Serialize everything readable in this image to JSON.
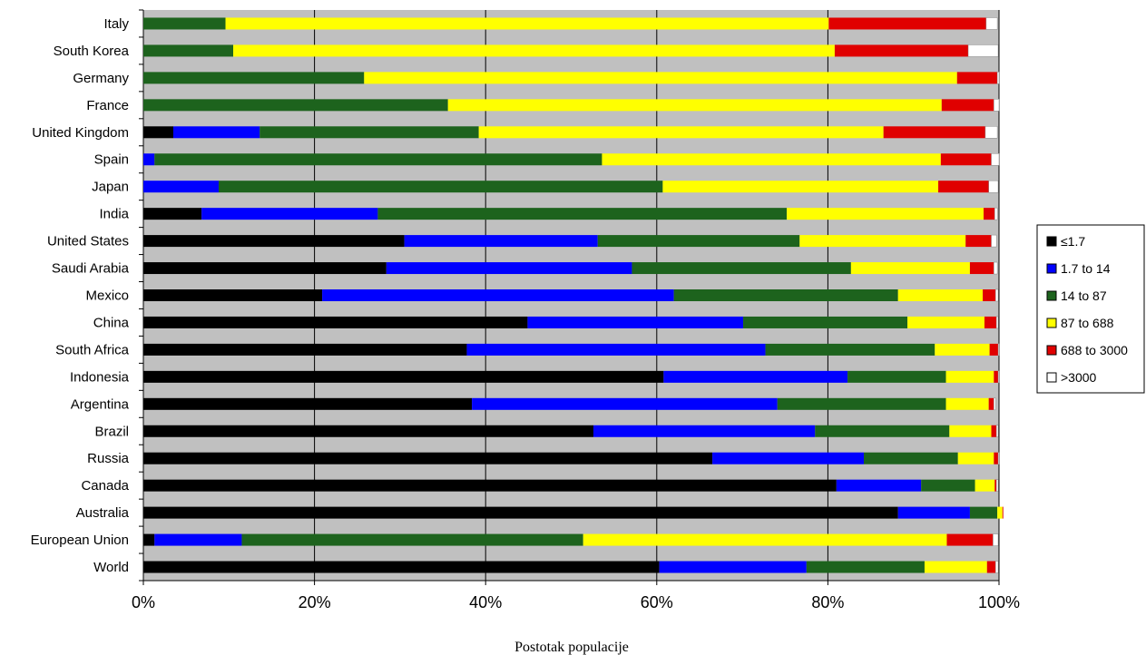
{
  "chart_data": {
    "type": "bar",
    "orientation": "horizontal",
    "stacked": true,
    "percent": true,
    "title": "",
    "xlabel": "Postotak populacije",
    "ylabel": "",
    "xlim": [
      0,
      100
    ],
    "x_ticks": [
      "0%",
      "20%",
      "40%",
      "60%",
      "80%",
      "100%"
    ],
    "grid": true,
    "legend_position": "right",
    "categories": [
      "Italy",
      "South Korea",
      "Germany",
      "France",
      "United Kingdom",
      "Spain",
      "Japan",
      "India",
      "United States",
      "Saudi Arabia",
      "Mexico",
      "China",
      "South Africa",
      "Indonesia",
      "Argentina",
      "Brazil",
      "Russia",
      "Canada",
      "Australia",
      "European Union",
      "World"
    ],
    "series": [
      {
        "name": "≤1.7",
        "color": "#000000",
        "values": [
          0,
          0,
          0,
          0,
          3.5,
          0,
          0,
          6.8,
          30.5,
          28.4,
          20.9,
          44.9,
          37.8,
          60.8,
          38.4,
          52.6,
          66.5,
          81.0,
          88.2,
          1.3,
          60.3
        ]
      },
      {
        "name": "1.7 to 14",
        "color": "#0000ff",
        "values": [
          0,
          0,
          0,
          0,
          10.1,
          1.3,
          8.8,
          20.6,
          22.6,
          28.7,
          41.1,
          25.2,
          34.9,
          21.5,
          35.7,
          25.9,
          17.7,
          9.9,
          8.4,
          10.2,
          17.2
        ]
      },
      {
        "name": "14 to 87",
        "color": "#1d631d",
        "values": [
          9.6,
          10.5,
          25.8,
          35.6,
          25.6,
          52.3,
          51.9,
          47.8,
          23.6,
          25.6,
          26.2,
          19.2,
          19.8,
          11.5,
          19.7,
          15.7,
          11.0,
          6.3,
          3.2,
          39.9,
          13.8
        ]
      },
      {
        "name": "87 to 688",
        "color": "#ffff00",
        "values": [
          70.5,
          70.3,
          69.3,
          57.7,
          47.3,
          39.6,
          32.2,
          23.0,
          19.4,
          13.9,
          9.9,
          9.0,
          6.4,
          5.6,
          5.0,
          4.9,
          4.2,
          2.3,
          0.6,
          42.5,
          7.3
        ]
      },
      {
        "name": "688 to 3000",
        "color": "#e00000",
        "values": [
          18.4,
          15.6,
          4.7,
          6.1,
          11.9,
          5.9,
          5.9,
          1.3,
          3.0,
          2.8,
          1.5,
          1.4,
          1.0,
          0.5,
          0.6,
          0.6,
          0.5,
          0.2,
          0.1,
          5.4,
          1.0
        ]
      },
      {
        "name": ">3000",
        "color": "#ffffff",
        "values": [
          1.3,
          3.5,
          0.2,
          0.6,
          1.4,
          0.9,
          1.1,
          0.3,
          0.6,
          0.4,
          0.3,
          0.2,
          0.1,
          0.1,
          0.2,
          0.2,
          0.1,
          0.2,
          0.0,
          0.6,
          0.3
        ]
      }
    ]
  }
}
